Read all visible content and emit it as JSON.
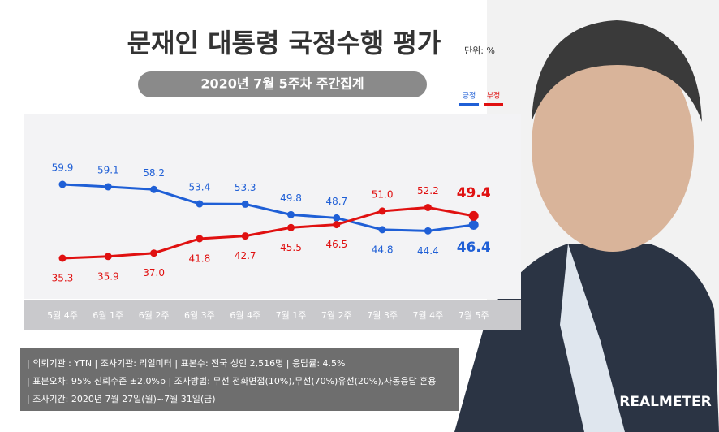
{
  "chart_data": {
    "type": "line",
    "title": "문재인 대통령 국정수행 평가",
    "unit": "단위: %",
    "subtitle": "2020년 7월 5주차 주간집계",
    "categories": [
      "5월 4주",
      "6월 1주",
      "6월 2주",
      "6월 3주",
      "6월 4주",
      "7월 1주",
      "7월 2주",
      "7월 3주",
      "7월 4주",
      "7월 5주"
    ],
    "series": [
      {
        "name": "긍정",
        "color": "#1f5fd6",
        "values": [
          59.9,
          59.1,
          58.2,
          53.4,
          53.3,
          49.8,
          48.7,
          44.8,
          44.4,
          46.4
        ],
        "value_labels": [
          "59.9",
          "59.1",
          "58.2",
          "53.4",
          "53.3",
          "49.8",
          "48.7",
          "44.8",
          "44.4",
          "46.4"
        ]
      },
      {
        "name": "부정",
        "color": "#e01010",
        "values": [
          35.3,
          35.9,
          37,
          41.8,
          42.7,
          45.5,
          46.5,
          51,
          52.2,
          49.4
        ],
        "value_labels": [
          "35.3",
          "35.9",
          "37.0",
          "41.8",
          "42.7",
          "45.5",
          "46.5",
          "51.0",
          "52.2",
          "49.4"
        ]
      }
    ]
  },
  "footer": [
    "| 의뢰기관 : YTN | 조사기관: 리얼미터 | 표본수: 전국 성인 2,516명 | 응답률: 4.5%",
    "| 표본오차: 95% 신뢰수준 ±2.0%p | 조사방법: 무선 전화면접(10%),무선(70%)유선(20%),자동응답 혼용",
    "| 조사기간: 2020년 7월 27일(월)~7월 31일(금)"
  ],
  "brand": "REALMETER"
}
